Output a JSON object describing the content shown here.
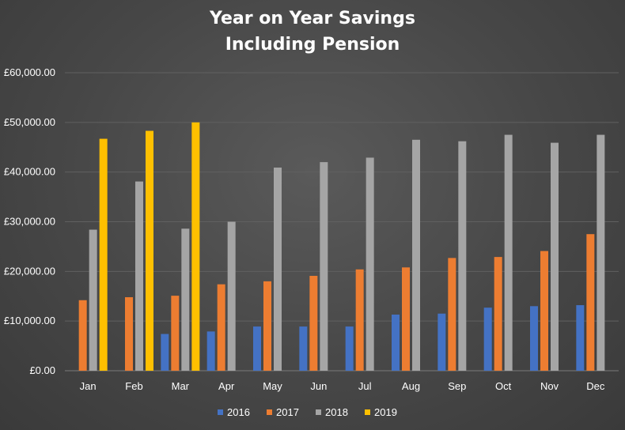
{
  "chart_data": {
    "type": "bar",
    "title": [
      "Year on Year Savings",
      "Including Pension"
    ],
    "xlabel": "",
    "ylabel": "",
    "ylim": [
      0,
      60000
    ],
    "ytick_values": [
      0,
      10000,
      20000,
      30000,
      40000,
      50000,
      60000
    ],
    "ytick_labels": [
      "£0.00",
      "£10,000.00",
      "£20,000.00",
      "£30,000.00",
      "£40,000.00",
      "£50,000.00",
      "£60,000.00"
    ],
    "categories": [
      "Jan",
      "Feb",
      "Mar",
      "Apr",
      "May",
      "Jun",
      "Jul",
      "Aug",
      "Sep",
      "Oct",
      "Nov",
      "Dec"
    ],
    "grid": true,
    "legend_position": "bottom",
    "series": [
      {
        "name": "2016",
        "color": "#4472C4",
        "values": [
          null,
          null,
          7400,
          7900,
          8900,
          8900,
          8900,
          11300,
          11500,
          12700,
          13000,
          13200
        ]
      },
      {
        "name": "2017",
        "color": "#ED7D31",
        "values": [
          14200,
          14800,
          15100,
          17400,
          18000,
          19100,
          20400,
          20800,
          22700,
          22900,
          24100,
          27500
        ]
      },
      {
        "name": "2018",
        "color": "#A5A5A5",
        "values": [
          28400,
          38100,
          28600,
          30000,
          40900,
          42000,
          42900,
          46500,
          46200,
          47500,
          45900,
          47500
        ]
      },
      {
        "name": "2019",
        "color": "#FFC000",
        "values": [
          46700,
          48300,
          50000,
          null,
          null,
          null,
          null,
          null,
          null,
          null,
          null,
          null
        ]
      }
    ]
  }
}
